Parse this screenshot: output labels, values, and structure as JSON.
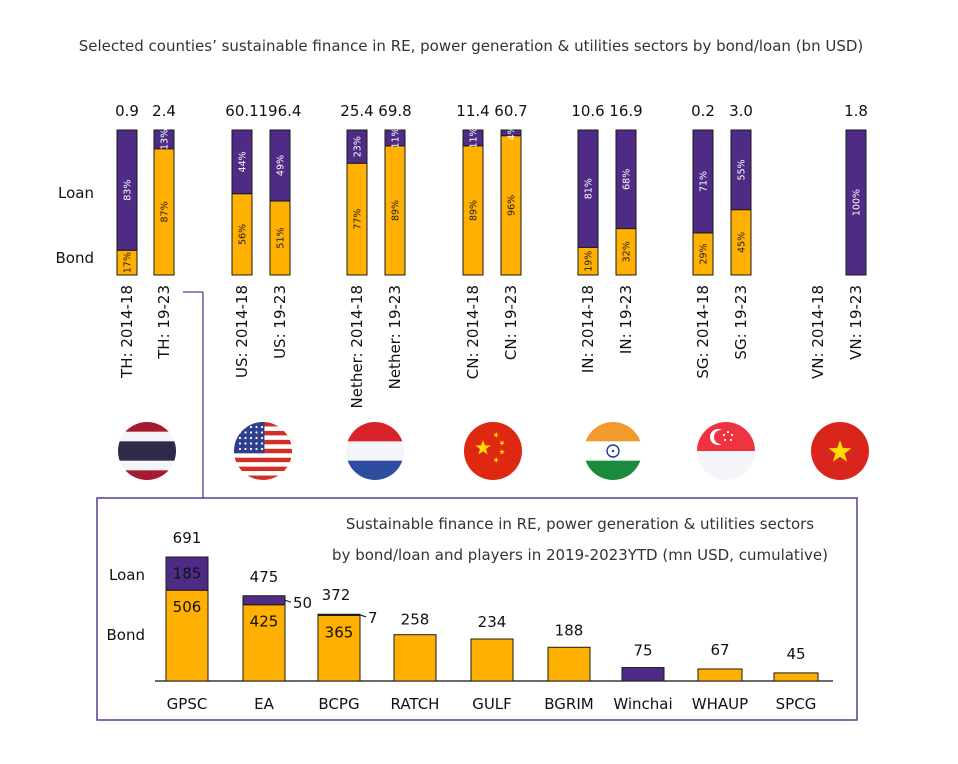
{
  "colors": {
    "bond": "#FFB000",
    "loan": "#4E2C86",
    "border": "#1a1a1a",
    "frame": "#5B3A8E"
  },
  "main_title": "Selected counties’ sustainable finance in RE, power generation & utilities sectors by bond/loan (bn USD)",
  "row_labels": {
    "loan": "Loan",
    "bond": "Bond"
  },
  "inset": {
    "title_line1": "Sustainable finance in RE, power generation & utilities sectors",
    "title_line2": "by bond/loan and players in 2019-2023YTD (mn USD, cumulative)",
    "row_labels": {
      "loan": "Loan",
      "bond": "Bond"
    }
  },
  "countries": [
    {
      "flag": "thailand-flag-icon"
    },
    {
      "flag": "usa-flag-icon"
    },
    {
      "flag": "netherlands-flag-icon"
    },
    {
      "flag": "china-flag-icon"
    },
    {
      "flag": "india-flag-icon"
    },
    {
      "flag": "singapore-flag-icon"
    },
    {
      "flag": "vietnam-flag-icon"
    }
  ],
  "chart_data": [
    {
      "type": "bar",
      "stacked": true,
      "normalized": true,
      "title": "Selected counties’ sustainable finance in RE, power generation & utilities sectors by bond/loan (bn USD)",
      "categories": [
        "TH: 2014-18",
        "TH: 19-23",
        "US: 2014-18",
        "US: 19-23",
        "Nether: 2014-18",
        "Nether: 19-23",
        "CN: 2014-18",
        "CN: 19-23",
        "IN: 2014-18",
        "IN: 19-23",
        "SG: 2014-18",
        "SG: 19-23",
        "VN: 2014-18",
        "VN: 19-23"
      ],
      "totals": [
        "0.9",
        "2.4",
        "60.1",
        "196.4",
        "25.4",
        "69.8",
        "11.4",
        "60.7",
        "10.6",
        "16.9",
        "0.2",
        "3.0",
        null,
        "1.8"
      ],
      "series": [
        {
          "name": "Bond",
          "values": [
            17,
            87,
            56,
            51,
            77,
            89,
            89,
            96,
            19,
            32,
            29,
            45,
            null,
            0
          ],
          "labels": [
            "17%",
            "87%",
            "56%",
            "51%",
            "77%",
            "89%",
            "89%",
            "96%",
            "19%",
            "32%",
            "29%",
            "45%",
            null,
            null
          ]
        },
        {
          "name": "Loan",
          "values": [
            83,
            13,
            44,
            49,
            23,
            11,
            11,
            4,
            81,
            68,
            71,
            55,
            null,
            100
          ],
          "labels": [
            "83%",
            "13%",
            "44%",
            "49%",
            "23%",
            "11%",
            "11%",
            "4%",
            "81%",
            "68%",
            "71%",
            "55%",
            null,
            "100%"
          ]
        }
      ],
      "ylim": [
        0,
        100
      ]
    },
    {
      "type": "bar",
      "stacked": true,
      "title": "Sustainable finance in RE, power generation & utilities sectors by bond/loan and players in 2019-2023YTD (mn USD, cumulative)",
      "categories": [
        "GPSC",
        "EA",
        "BCPG",
        "RATCH",
        "GULF",
        "BGRIM",
        "Winchai",
        "WHAUP",
        "SPCG"
      ],
      "totals": [
        691,
        475,
        372,
        258,
        234,
        188,
        75,
        67,
        45
      ],
      "series": [
        {
          "name": "Bond",
          "values": [
            506,
            425,
            365,
            258,
            234,
            188,
            0,
            67,
            45
          ]
        },
        {
          "name": "Loan",
          "values": [
            185,
            50,
            7,
            0,
            0,
            0,
            75,
            0,
            0
          ]
        }
      ],
      "inner_labels": [
        [
          "506",
          "185"
        ],
        [
          "425",
          null
        ],
        [
          "365",
          null
        ]
      ],
      "side_labels": [
        null,
        "50",
        "7"
      ],
      "ylim": [
        0,
        691
      ]
    }
  ]
}
